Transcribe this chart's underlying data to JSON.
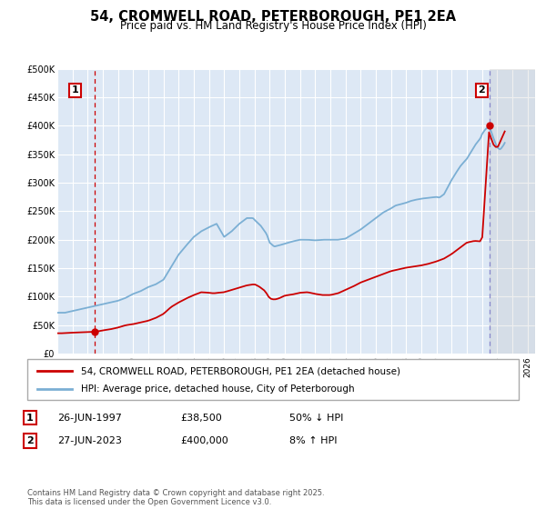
{
  "title": "54, CROMWELL ROAD, PETERBOROUGH, PE1 2EA",
  "subtitle": "Price paid vs. HM Land Registry's House Price Index (HPI)",
  "background_color": "#ffffff",
  "plot_bg_color": "#dde8f5",
  "grid_color": "#ffffff",
  "red_color": "#cc0000",
  "blue_color": "#7bafd4",
  "ylim": [
    0,
    500000
  ],
  "yticks": [
    0,
    50000,
    100000,
    150000,
    200000,
    250000,
    300000,
    350000,
    400000,
    450000,
    500000
  ],
  "ytick_labels": [
    "£0",
    "£50K",
    "£100K",
    "£150K",
    "£200K",
    "£250K",
    "£300K",
    "£350K",
    "£400K",
    "£450K",
    "£500K"
  ],
  "xlim_start": 1995.0,
  "xlim_end": 2026.5,
  "xticks": [
    1995,
    1996,
    1997,
    1998,
    1999,
    2000,
    2001,
    2002,
    2003,
    2004,
    2005,
    2006,
    2007,
    2008,
    2009,
    2010,
    2011,
    2012,
    2013,
    2014,
    2015,
    2016,
    2017,
    2018,
    2019,
    2020,
    2021,
    2022,
    2023,
    2024,
    2025,
    2026
  ],
  "marker1_x": 1997.49,
  "marker1_y": 38500,
  "marker2_x": 2023.49,
  "marker2_y": 400000,
  "vline1_x": 1997.49,
  "vline2_x": 2023.49,
  "shade_start": 2023.49,
  "shade_end": 2026.5,
  "legend_red": "54, CROMWELL ROAD, PETERBOROUGH, PE1 2EA (detached house)",
  "legend_blue": "HPI: Average price, detached house, City of Peterborough",
  "table_row1": [
    "1",
    "26-JUN-1997",
    "£38,500",
    "50% ↓ HPI"
  ],
  "table_row2": [
    "2",
    "27-JUN-2023",
    "£400,000",
    "8% ↑ HPI"
  ],
  "footer": "Contains HM Land Registry data © Crown copyright and database right 2025.\nThis data is licensed under the Open Government Licence v3.0."
}
